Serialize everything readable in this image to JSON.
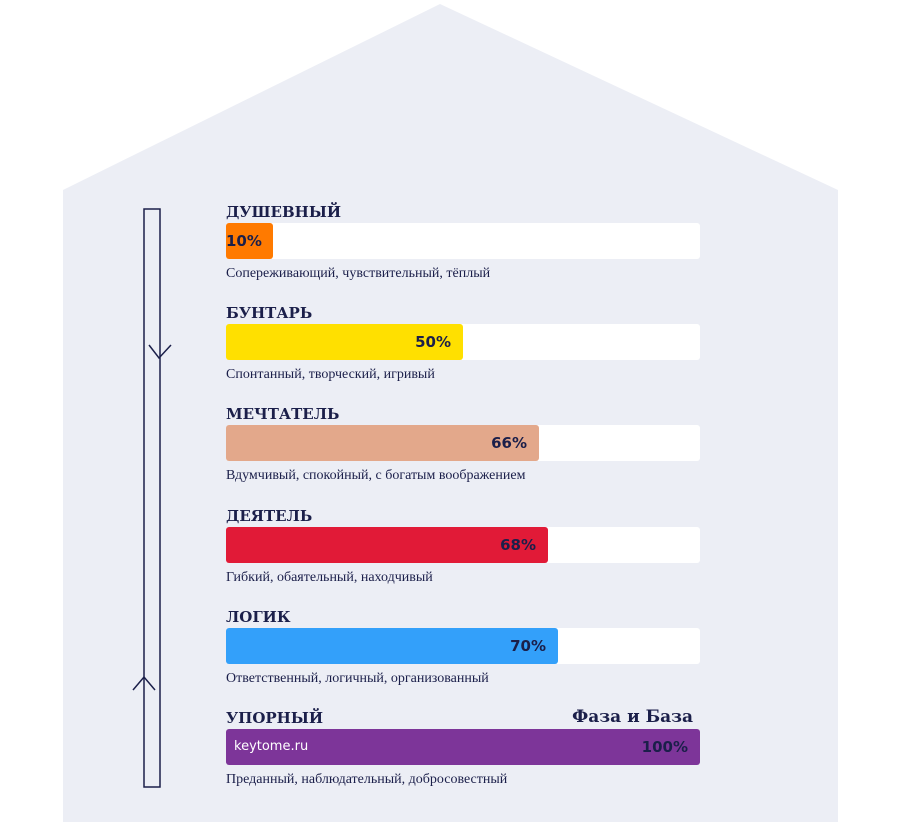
{
  "chart_data": {
    "type": "bar",
    "orientation": "horizontal",
    "xlim": [
      0,
      100
    ],
    "bars": [
      {
        "category": "ДУШЕВНЫЙ",
        "value": 10,
        "label": "10%",
        "color": "#ff7a00",
        "description": "Сопереживающий, чувствительный, тёплый"
      },
      {
        "category": "БУНТАРЬ",
        "value": 50,
        "label": "50%",
        "color": "#ffe000",
        "description": "Спонтанный, творческий, игривый"
      },
      {
        "category": "МЕЧТАТЕЛЬ",
        "value": 66,
        "label": "66%",
        "color": "#e3a88b",
        "description": "Вдумчивый, спокойный, с богатым воображением"
      },
      {
        "category": "ДЕЯТЕЛЬ",
        "value": 68,
        "label": "68%",
        "color": "#e11a37",
        "description": "Гибкий, обаятельный, находчивый"
      },
      {
        "category": "ЛОГИК",
        "value": 70,
        "label": "70%",
        "color": "#33a0fa",
        "description": "Ответственный, логичный, организованный"
      },
      {
        "category": "УПОРНЫЙ",
        "value": 100,
        "label": "100%",
        "color": "#7d3599",
        "description": "Преданный, наблюдательный, добросовестный"
      }
    ]
  },
  "brand": "Фаза и База",
  "watermark": "keytome.ru",
  "colors": {
    "house_fill": "#eceef5",
    "text": "#1b1f4a",
    "track": "#ffffff"
  }
}
